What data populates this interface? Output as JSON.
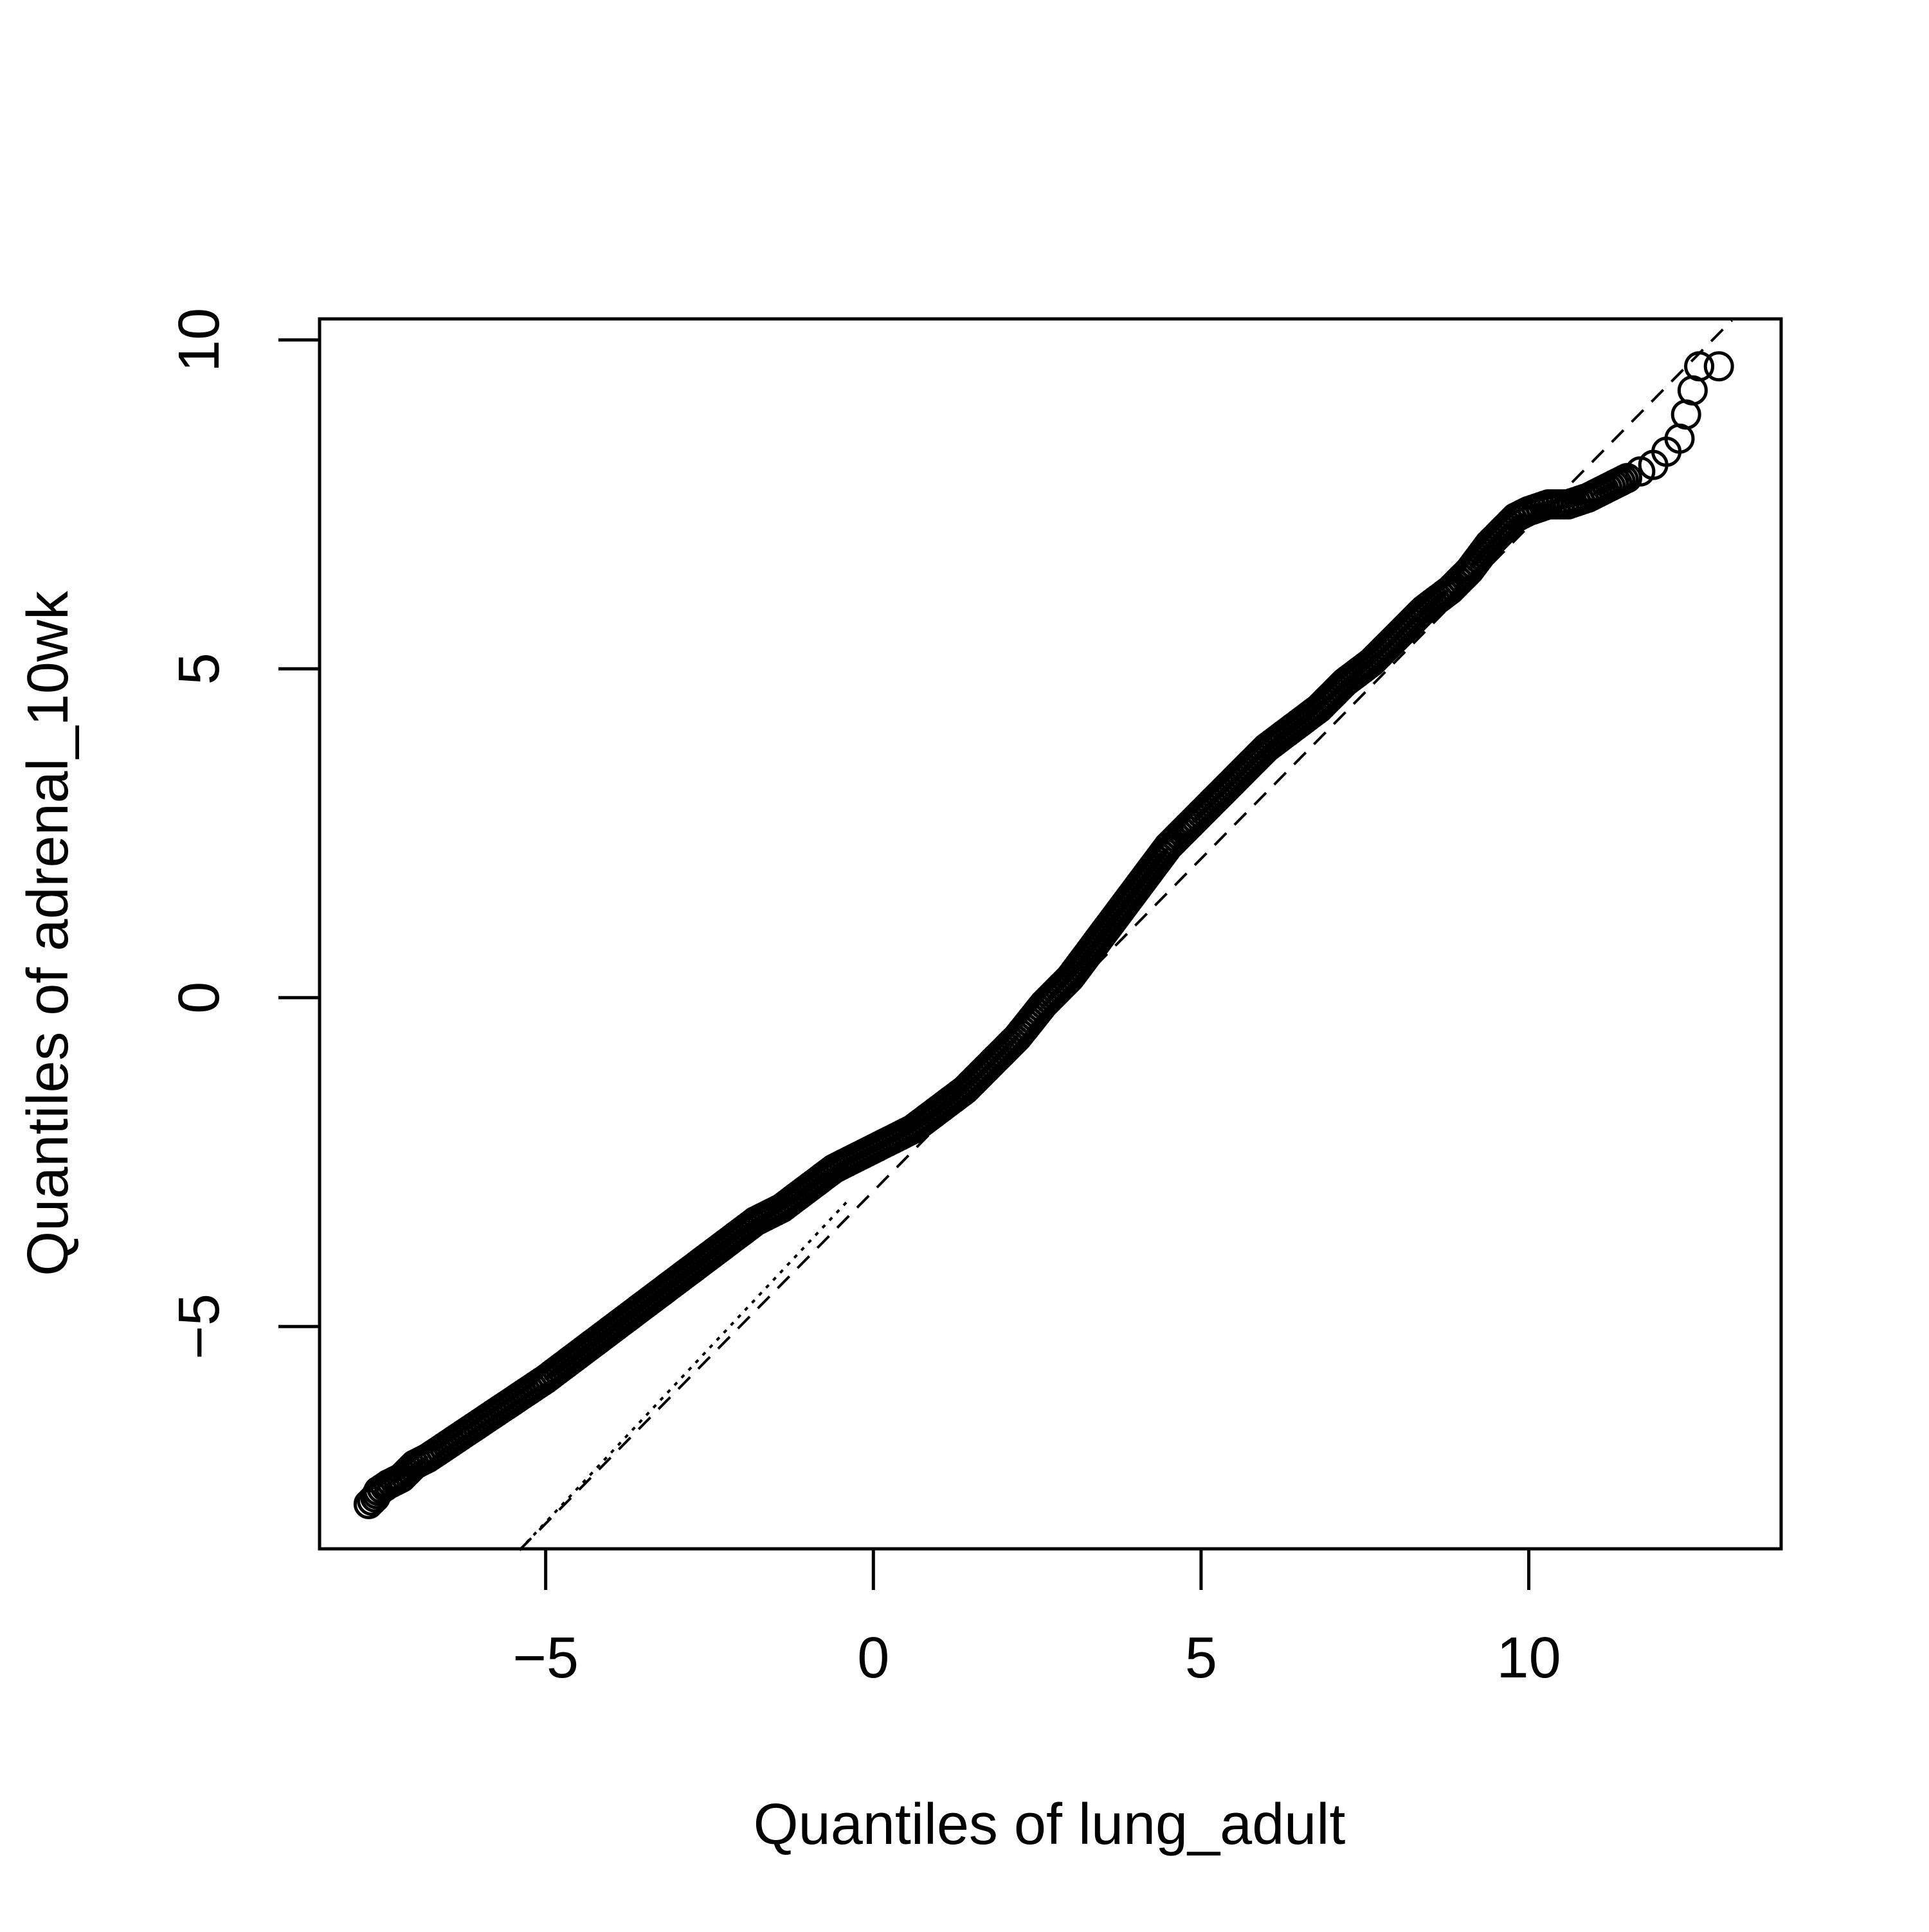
{
  "chart_data": {
    "type": "scatter",
    "title": "",
    "xlabel": "Quantiles of lung_adult",
    "ylabel": "Quantiles of adrenal_10wk",
    "xlim": [
      -8.45,
      13.85
    ],
    "ylim": [
      -8.38,
      10.32
    ],
    "x_ticks": [
      -5,
      0,
      5,
      10
    ],
    "y_ticks": [
      -5,
      0,
      5,
      10
    ],
    "x_tick_labels": [
      "−5",
      "0",
      "5",
      "10"
    ],
    "y_tick_labels": [
      "−5",
      "0",
      "5",
      "10"
    ],
    "grid": false,
    "point_style": "open-circle",
    "reference_line": {
      "style": "dashed",
      "x": [
        -5.4,
        13.1
      ],
      "y": [
        -8.4,
        10.3
      ]
    },
    "guide_line": {
      "style": "dotted",
      "x": [
        -5.4,
        -0.4
      ],
      "y": [
        -8.4,
        -3.1
      ]
    },
    "series": [
      {
        "x": [
          -7.7,
          -7.6,
          -7.55,
          -7.4,
          -7.2,
          -7.0,
          -6.8,
          -6.5,
          -6.2,
          -5.9,
          -5.6,
          -5.3,
          -5.0,
          -4.6,
          -4.2,
          -3.8,
          -3.4,
          -3.0,
          -2.6,
          -2.2,
          -1.8,
          -1.4,
          -1.0,
          -0.6,
          -0.2,
          0.2,
          0.6,
          1.0,
          1.4,
          1.8,
          2.2,
          2.6,
          3.0,
          3.3,
          3.6,
          3.9,
          4.2,
          4.5,
          4.8,
          5.2,
          5.6,
          6.0,
          6.4,
          6.8,
          7.2,
          7.6,
          8.0,
          8.4,
          8.8,
          9.1,
          9.4,
          9.6,
          9.8,
          10.0,
          10.3,
          10.6,
          10.9,
          11.1,
          11.3,
          11.5,
          11.7,
          11.9,
          12.1,
          12.3,
          12.6,
          12.9
        ],
        "y": [
          -7.7,
          -7.6,
          -7.5,
          -7.4,
          -7.3,
          -7.1,
          -7.0,
          -6.8,
          -6.6,
          -6.4,
          -6.2,
          -6.0,
          -5.8,
          -5.5,
          -5.2,
          -4.9,
          -4.6,
          -4.3,
          -4.0,
          -3.7,
          -3.4,
          -3.2,
          -2.9,
          -2.6,
          -2.4,
          -2.2,
          -2.0,
          -1.7,
          -1.4,
          -1.0,
          -0.6,
          -0.1,
          0.3,
          0.7,
          1.1,
          1.5,
          1.9,
          2.3,
          2.6,
          3.0,
          3.4,
          3.8,
          4.1,
          4.4,
          4.8,
          5.1,
          5.5,
          5.9,
          6.2,
          6.5,
          6.9,
          7.1,
          7.3,
          7.4,
          7.5,
          7.5,
          7.6,
          7.7,
          7.8,
          7.9,
          8.0,
          8.1,
          8.3,
          8.5,
          9.6,
          9.6
        ]
      }
    ]
  }
}
